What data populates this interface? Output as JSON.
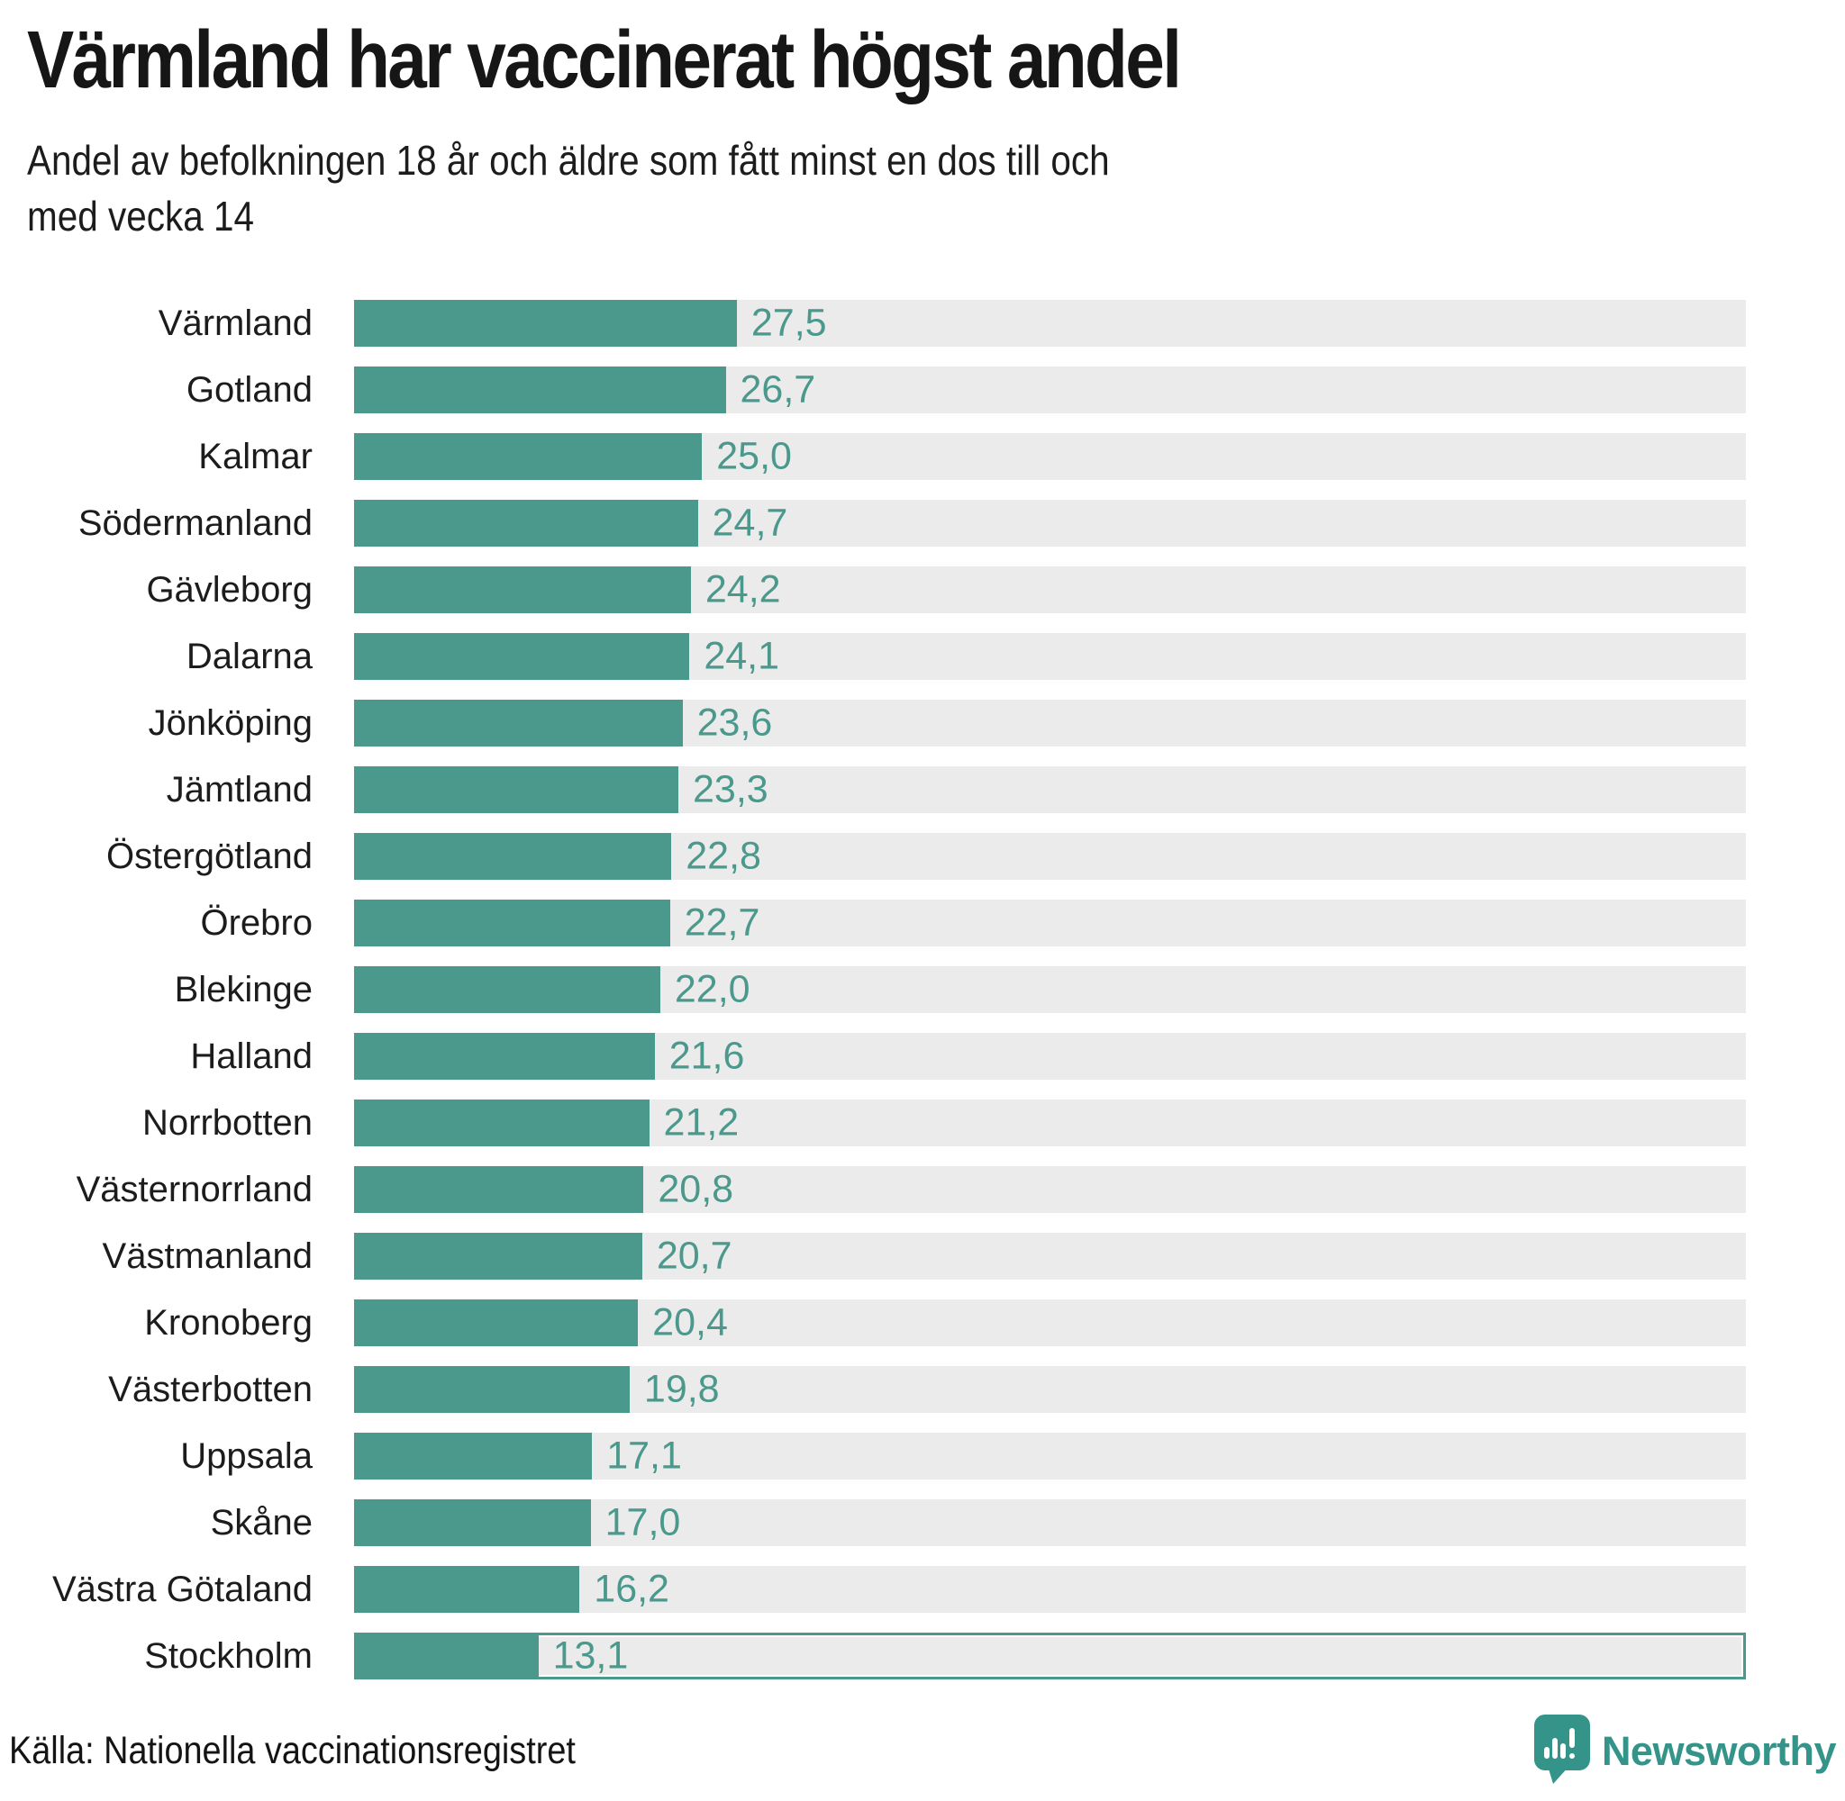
{
  "header": {
    "title": "Värmland har vaccinerat högst andel",
    "subtitle_line1": "Andel av befolkningen 18 år och äldre som fått minst en dos till och",
    "subtitle_line2": "med vecka 14"
  },
  "chart_data": {
    "type": "bar",
    "orientation": "horizontal",
    "title": "Värmland har vaccinerat högst andel",
    "xlabel": "",
    "ylabel": "",
    "xlim": [
      0,
      100
    ],
    "unit": "percent",
    "grid": false,
    "legend": false,
    "categories": [
      "Värmland",
      "Gotland",
      "Kalmar",
      "Södermanland",
      "Gävleborg",
      "Dalarna",
      "Jönköping",
      "Jämtland",
      "Östergötland",
      "Örebro",
      "Blekinge",
      "Halland",
      "Norrbotten",
      "Västernorrland",
      "Västmanland",
      "Kronoberg",
      "Västerbotten",
      "Uppsala",
      "Skåne",
      "Västra Götaland",
      "Stockholm"
    ],
    "values": [
      27.5,
      26.7,
      25.0,
      24.7,
      24.2,
      24.1,
      23.6,
      23.3,
      22.8,
      22.7,
      22.0,
      21.6,
      21.2,
      20.8,
      20.7,
      20.4,
      19.8,
      17.1,
      17.0,
      16.2,
      13.1
    ],
    "value_labels": [
      "27,5",
      "26,7",
      "25,0",
      "24,7",
      "24,2",
      "24,1",
      "23,6",
      "23,3",
      "22,8",
      "22,7",
      "22,0",
      "21,6",
      "21,2",
      "20,8",
      "20,7",
      "20,4",
      "19,8",
      "17,1",
      "17,0",
      "16,2",
      "13,1"
    ],
    "highlighted_category": "Stockholm",
    "bar_color": "#4a998c",
    "track_color": "#ebebeb",
    "value_label_color": "#4a998c"
  },
  "footer": {
    "source": "Källa: Nationella vaccinationsregistret",
    "brand": "Newsworthy"
  },
  "icons": {
    "logo_pin": "bar-chart-speech-bubble-pin-icon"
  }
}
